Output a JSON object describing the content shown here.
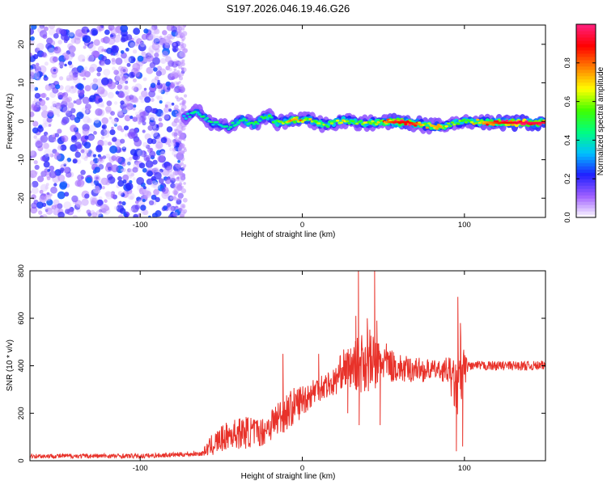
{
  "figure_title": "S197.2026.046.19.46.G26",
  "colors": {
    "snr_line": "#e8322a",
    "frame": "#000000"
  },
  "chart_data": [
    {
      "type": "heatmap",
      "xlabel": "Height of straight line (km)",
      "ylabel": "Frequency (Hz)",
      "xlim": [
        -168,
        150
      ],
      "ylim": [
        -25,
        25
      ],
      "x_ticks": [
        -100,
        0,
        100
      ],
      "y_ticks": [
        -20,
        -10,
        0,
        10,
        20
      ],
      "colorbar": {
        "label": "Normalized spectral amplitude",
        "range": [
          0,
          1
        ],
        "ticks": [
          0.0,
          0.2,
          0.4,
          0.6,
          0.8
        ],
        "colors": [
          "#ffffff",
          "#a060ff",
          "#2020ff",
          "#00c0ff",
          "#00ff80",
          "#40ff00",
          "#ffff00",
          "#ff8000",
          "#ff0000",
          "#ff2080"
        ]
      },
      "noise_region_x": [
        -168,
        -73
      ],
      "track": [
        {
          "x": -73,
          "f": 1.0,
          "a": 0.3
        },
        {
          "x": -65,
          "f": 2.5,
          "a": 0.4
        },
        {
          "x": -55,
          "f": -0.5,
          "a": 0.4
        },
        {
          "x": -45,
          "f": -1.5,
          "a": 0.4
        },
        {
          "x": -37,
          "f": 0.5,
          "a": 0.45
        },
        {
          "x": -30,
          "f": -1.0,
          "a": 0.45
        },
        {
          "x": -22,
          "f": 1.5,
          "a": 0.5
        },
        {
          "x": -15,
          "f": -0.5,
          "a": 0.55
        },
        {
          "x": -5,
          "f": 0.5,
          "a": 0.75
        },
        {
          "x": 5,
          "f": 0.3,
          "a": 0.6
        },
        {
          "x": 15,
          "f": -1.0,
          "a": 0.55
        },
        {
          "x": 25,
          "f": 0.3,
          "a": 0.6
        },
        {
          "x": 35,
          "f": -0.5,
          "a": 0.55
        },
        {
          "x": 45,
          "f": -0.3,
          "a": 0.6
        },
        {
          "x": 55,
          "f": -0.2,
          "a": 0.85
        },
        {
          "x": 65,
          "f": -0.3,
          "a": 0.9
        },
        {
          "x": 75,
          "f": -1.0,
          "a": 0.7
        },
        {
          "x": 85,
          "f": -1.5,
          "a": 0.75
        },
        {
          "x": 92,
          "f": -0.8,
          "a": 0.5
        },
        {
          "x": 100,
          "f": 0.0,
          "a": 0.6
        },
        {
          "x": 110,
          "f": -0.2,
          "a": 0.7
        },
        {
          "x": 120,
          "f": -0.4,
          "a": 0.85
        },
        {
          "x": 135,
          "f": -0.4,
          "a": 0.95
        },
        {
          "x": 150,
          "f": -0.4,
          "a": 0.95
        }
      ]
    },
    {
      "type": "line",
      "xlabel": "Height of straight line (km)",
      "ylabel": "SNR (10 * v/v)",
      "xlim": [
        -168,
        150
      ],
      "ylim": [
        0,
        800
      ],
      "x_ticks": [
        -100,
        0,
        100
      ],
      "y_ticks": [
        0,
        200,
        400,
        600,
        800
      ],
      "envelope": {
        "x": [
          -168,
          -100,
          -80,
          -62,
          -55,
          -45,
          -35,
          -25,
          -15,
          -5,
          5,
          10,
          15,
          20,
          25,
          30,
          35,
          40,
          45,
          50,
          55,
          60,
          65,
          70,
          75,
          80,
          85,
          90,
          95,
          98,
          100,
          102,
          110,
          120,
          135,
          150
        ],
        "mean": [
          20,
          20,
          25,
          30,
          70,
          110,
          120,
          120,
          180,
          230,
          280,
          310,
          320,
          330,
          390,
          390,
          410,
          430,
          400,
          420,
          400,
          390,
          380,
          390,
          380,
          385,
          380,
          380,
          300,
          350,
          380,
          400,
          400,
          400,
          400,
          400
        ],
        "spread": [
          10,
          10,
          10,
          10,
          50,
          60,
          70,
          60,
          80,
          80,
          60,
          60,
          60,
          60,
          80,
          90,
          120,
          150,
          110,
          90,
          70,
          60,
          60,
          50,
          50,
          40,
          40,
          60,
          120,
          200,
          80,
          20,
          20,
          20,
          20,
          20
        ]
      },
      "spikes": [
        {
          "x": 33,
          "y": 610
        },
        {
          "x": 34.5,
          "y": 800
        },
        {
          "x": 40,
          "y": 600
        },
        {
          "x": 44.5,
          "y": 800
        },
        {
          "x": 46,
          "y": 590
        },
        {
          "x": 96,
          "y": 690
        },
        {
          "x": 97.5,
          "y": 580
        },
        {
          "x": 95,
          "y": 40
        },
        {
          "x": 99,
          "y": 60
        },
        {
          "x": 10,
          "y": 450
        },
        {
          "x": -12,
          "y": 450
        },
        {
          "x": 35,
          "y": 150
        },
        {
          "x": 48,
          "y": 150
        },
        {
          "x": 28,
          "y": 200
        }
      ]
    }
  ]
}
